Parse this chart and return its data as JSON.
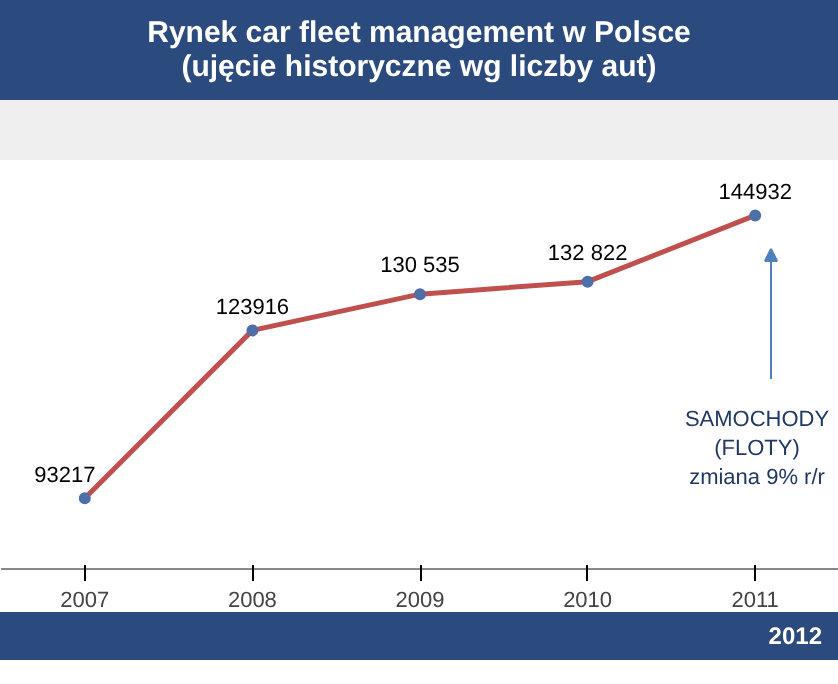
{
  "chart_data": {
    "type": "line",
    "title": "Rynek car fleet management w Polsce",
    "subtitle": "(ujęcie historyczne wg liczby aut)",
    "categories": [
      "2007",
      "2008",
      "2009",
      "2010",
      "2011"
    ],
    "series": [
      {
        "color": "#c0504d",
        "values": [
          93217,
          123916,
          130535,
          132822,
          144932
        ],
        "value_labels": [
          "93217",
          "123916",
          "130 535",
          "132 822",
          "144932"
        ]
      }
    ],
    "marker": "circle",
    "line_style": "solid",
    "grid": false,
    "tick_labels": "x",
    "annotations": [
      "SAMOCHODY\n(FLOTY)\nzmiana 9% r/r",
      "2012"
    ]
  }
}
